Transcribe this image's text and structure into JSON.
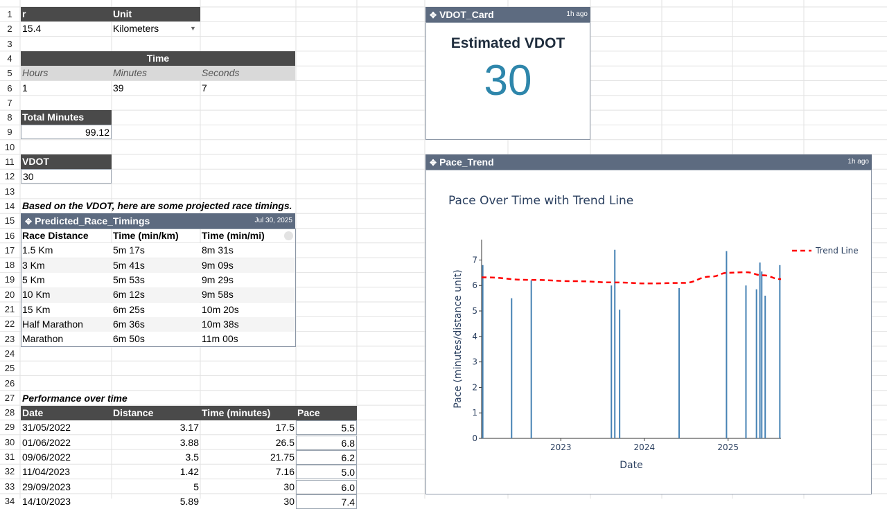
{
  "sheet": {
    "row_numbers": [
      "1",
      "2",
      "3",
      "4",
      "5",
      "6",
      "7",
      "8",
      "9",
      "10",
      "11",
      "12",
      "13",
      "14",
      "15",
      "16",
      "17",
      "18",
      "19",
      "20",
      "21",
      "22",
      "23",
      "24",
      "25",
      "26",
      "27",
      "28",
      "29",
      "30",
      "31",
      "32",
      "33",
      "34"
    ],
    "distance_header": "r",
    "unit_header": "Unit",
    "distance_value": "15.4",
    "unit_value": "Kilometers",
    "time_header": "Time",
    "hours_label": "Hours",
    "minutes_label": "Minutes",
    "seconds_label": "Seconds",
    "hours_value": "1",
    "minutes_value": "39",
    "seconds_value": "7",
    "total_minutes_label": "Total Minutes",
    "total_minutes_value": "99.12",
    "vdot_label": "VDOT",
    "vdot_value": "30",
    "projection_note": "Based on the VDOT, here are some projected race timings.",
    "performance_note": "Performance over time"
  },
  "race_table": {
    "title": "Predicted_Race_Timings",
    "timestamp": "Jul 30, 2025",
    "headers": [
      "Race Distance",
      "Time (min/km)",
      "Time (min/mi)"
    ],
    "rows": [
      [
        "1.5 Km",
        "5m 17s",
        "8m 31s"
      ],
      [
        "3 Km",
        "5m 41s",
        "9m 09s"
      ],
      [
        "5 Km",
        "5m 53s",
        "9m 29s"
      ],
      [
        "10 Km",
        "6m 12s",
        "9m 58s"
      ],
      [
        "15 Km",
        "6m 25s",
        "10m 20s"
      ],
      [
        "Half Marathon",
        "6m 36s",
        "10m 38s"
      ],
      [
        "Marathon",
        "6m 50s",
        "11m 00s"
      ]
    ]
  },
  "performance_table": {
    "headers": [
      "Date",
      "Distance",
      "Time (minutes)",
      "Pace"
    ],
    "rows": [
      [
        "31/05/2022",
        "3.17",
        "17.5",
        "5.5"
      ],
      [
        "01/06/2022",
        "3.88",
        "26.5",
        "6.8"
      ],
      [
        "09/06/2022",
        "3.5",
        "21.75",
        "6.2"
      ],
      [
        "11/04/2023",
        "1.42",
        "7.16",
        "5.0"
      ],
      [
        "29/09/2023",
        "5",
        "30",
        "6.0"
      ],
      [
        "14/10/2023",
        "5.89",
        "30",
        "7.4"
      ]
    ]
  },
  "vdot_card": {
    "title": "VDOT_Card",
    "timestamp": "1h ago",
    "heading": "Estimated VDOT",
    "value": "30",
    "value_color": "#2e86ab"
  },
  "pace_widget": {
    "title": "Pace_Trend",
    "timestamp": "1h ago"
  },
  "chart_data": {
    "type": "bar",
    "title": "Pace Over Time with Trend Line",
    "xlabel": "Date",
    "ylabel": "Pace (minutes/distance unit)",
    "x_tick_labels": [
      "2023",
      "2024",
      "2025"
    ],
    "y_ticks": [
      0,
      1,
      2,
      3,
      4,
      5,
      6,
      7
    ],
    "ylim": [
      0,
      7.8
    ],
    "xlim": [
      "2022-01-20",
      "2025-08-20"
    ],
    "bars": [
      {
        "x": "2022-01-25",
        "y": 6.8
      },
      {
        "x": "2022-05-31",
        "y": 5.5
      },
      {
        "x": "2022-08-25",
        "y": 6.2
      },
      {
        "x": "2023-08-10",
        "y": 6.0
      },
      {
        "x": "2023-08-25",
        "y": 7.4
      },
      {
        "x": "2023-09-15",
        "y": 5.05
      },
      {
        "x": "2024-06-01",
        "y": 5.9
      },
      {
        "x": "2024-12-25",
        "y": 7.35
      },
      {
        "x": "2025-03-20",
        "y": 6.0
      },
      {
        "x": "2025-05-05",
        "y": 5.85
      },
      {
        "x": "2025-05-20",
        "y": 6.9
      },
      {
        "x": "2025-05-28",
        "y": 6.55
      },
      {
        "x": "2025-06-12",
        "y": 5.6
      },
      {
        "x": "2025-08-15",
        "y": 6.8
      }
    ],
    "trend": {
      "name": "Trend Line",
      "color": "#ff0000",
      "points": [
        {
          "x": "2022-01-20",
          "y": 6.32
        },
        {
          "x": "2022-08-20",
          "y": 6.22
        },
        {
          "x": "2023-03-01",
          "y": 6.17
        },
        {
          "x": "2023-08-20",
          "y": 6.12
        },
        {
          "x": "2024-01-20",
          "y": 6.08
        },
        {
          "x": "2024-06-20",
          "y": 6.1
        },
        {
          "x": "2024-10-20",
          "y": 6.35
        },
        {
          "x": "2025-01-01",
          "y": 6.5
        },
        {
          "x": "2025-03-20",
          "y": 6.52
        },
        {
          "x": "2025-06-01",
          "y": 6.4
        },
        {
          "x": "2025-08-20",
          "y": 6.25
        }
      ]
    },
    "legend_position": "top-right",
    "bar_color": "#4682b4"
  }
}
